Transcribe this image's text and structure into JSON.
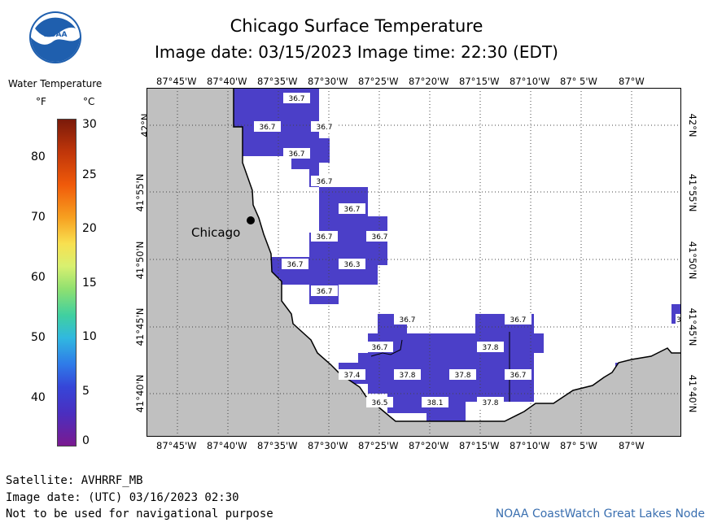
{
  "header": {
    "title": "Chicago Surface Temperature",
    "subtitle": "Image date: 03/15/2023    Image time: 22:30 (EDT)"
  },
  "logo": {
    "text": "NOAA",
    "icon": "noaa-logo-icon"
  },
  "legend": {
    "title": "Water Temperature",
    "unit_f": "°F",
    "unit_c": "°C",
    "f_ticks": [
      "80",
      "70",
      "60",
      "50",
      "40"
    ],
    "c_ticks": [
      "30",
      "25",
      "20",
      "15",
      "10",
      "5",
      "0"
    ]
  },
  "map": {
    "lon_labels": [
      "87°45'W",
      "87°40'W",
      "87°35'W",
      "87°30'W",
      "87°25'W",
      "87°20'W",
      "87°15'W",
      "87°10'W",
      "87° 5'W",
      "87°W"
    ],
    "lat_labels": [
      "42°N",
      "41°55'N",
      "41°50'N",
      "41°45'N",
      "41°40'N"
    ],
    "city": "Chicago",
    "water_color": "#4b3fc8",
    "land_color": "#c0c0c0",
    "cell_labels": [
      "36.7",
      "36.7",
      "36.7",
      "36.7",
      "36.7",
      "36.7",
      "36.7",
      "36.7",
      "36.7",
      "36.3",
      "36.7",
      "36.7",
      "36.7",
      "36.7",
      "37.8",
      "37.4",
      "37.8",
      "37.8",
      "36.7",
      "36.5",
      "38.1",
      "37.8",
      "3"
    ]
  },
  "footer": {
    "satellite": "Satellite: AVHRRF_MB",
    "utc_date": "Image date: (UTC) 03/16/2023  02:30",
    "disclaimer": "Not to be used for navigational purpose",
    "credit": "NOAA CoastWatch Great Lakes Node"
  }
}
